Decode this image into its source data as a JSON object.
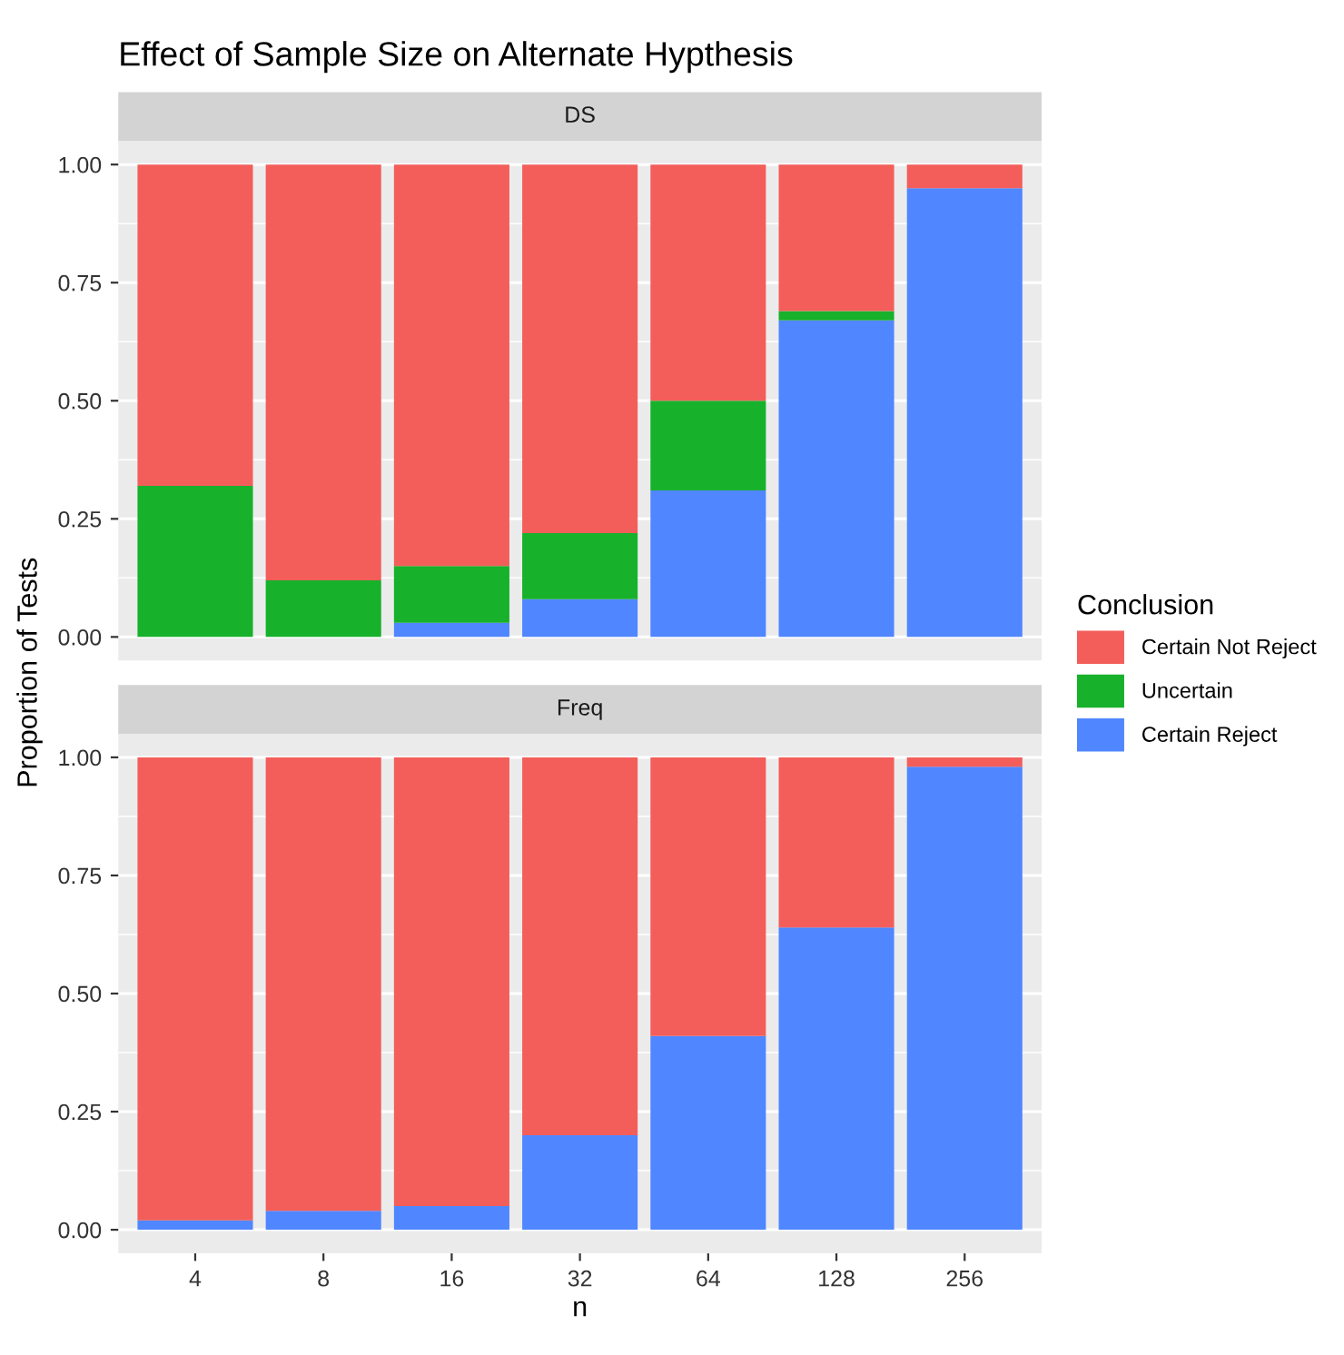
{
  "chart_data": [
    {
      "type": "bar",
      "title": "Effect of Sample Size on Alternate Hypthesis",
      "subtitle": "DS",
      "ylabel": "Proportion of Tests",
      "legend_title": "Conclusion",
      "legend": "right",
      "stacked": true,
      "grid": "y",
      "tick_labels": "y",
      "categories": [
        "4",
        "8",
        "16",
        "32",
        "64",
        "128",
        "256"
      ],
      "ylim": [
        -0.05,
        1.05
      ],
      "yticks": [
        {
          "value": 0,
          "label": "0.00"
        },
        {
          "value": 0.25,
          "label": "0.25"
        },
        {
          "value": 0.5,
          "label": "0.50"
        },
        {
          "value": 0.75,
          "label": "0.75"
        },
        {
          "value": 1,
          "label": "1.00"
        }
      ],
      "series": [
        {
          "name": "Certain Reject",
          "color": "#5086ff",
          "values": [
            0,
            0,
            0.03,
            0.08,
            0.31,
            0.67,
            0.95
          ]
        },
        {
          "name": "Uncertain",
          "color": "#17b12b",
          "values": [
            0.32,
            0.12,
            0.12,
            0.14,
            0.19,
            0.02,
            0
          ]
        },
        {
          "name": "Certain Not Reject",
          "color": "#f35e5a",
          "values": [
            0.68,
            0.88,
            0.85,
            0.78,
            0.5,
            0.31,
            0.05
          ]
        }
      ]
    },
    {
      "type": "bar",
      "subtitle": "Freq",
      "xlabel": "n",
      "stacked": true,
      "grid": "y",
      "categories": [
        "4",
        "8",
        "16",
        "32",
        "64",
        "128",
        "256"
      ],
      "ylim": [
        -0.05,
        1.05
      ],
      "yticks": [
        {
          "value": 0,
          "label": "0.00"
        },
        {
          "value": 0.25,
          "label": "0.25"
        },
        {
          "value": 0.5,
          "label": "0.50"
        },
        {
          "value": 0.75,
          "label": "0.75"
        },
        {
          "value": 1,
          "label": "1.00"
        }
      ],
      "series": [
        {
          "color": "#5086ff",
          "values": [
            0.02,
            0.04,
            0.05,
            0.2,
            0.41,
            0.64,
            0.98
          ]
        },
        {
          "color": "#17b12b",
          "values": [
            0,
            0,
            0,
            0,
            0,
            0,
            0
          ]
        },
        {
          "color": "#f35e5a",
          "values": [
            0.98,
            0.96,
            0.95,
            0.8,
            0.59,
            0.36,
            0.02
          ]
        }
      ]
    }
  ]
}
